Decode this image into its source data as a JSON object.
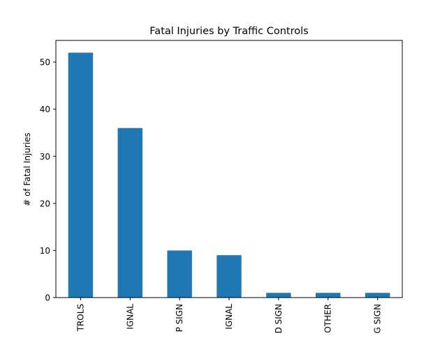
{
  "chart_data": {
    "type": "bar",
    "title": "Fatal Injuries by Traffic Controls",
    "xlabel": "",
    "ylabel": "# of Fatal Injuries",
    "categories": [
      "NO CONTROLS",
      "TRAFFIC SIGNAL",
      "STOP SIGN",
      "FLASHING SIGNAL",
      "YIELD SIGN",
      "OTHER",
      "PEDESTRIAN CROSSING SIGN"
    ],
    "category_labels_visible": [
      "TROLS",
      "IGNAL",
      "P SIGN",
      "IGNAL",
      "D SIGN",
      "OTHER",
      "G SIGN"
    ],
    "values": [
      52,
      36,
      10,
      9,
      1,
      1,
      1
    ],
    "ylim": [
      0,
      54.6
    ],
    "yticks": [
      "0",
      "10",
      "20",
      "30",
      "40",
      "50"
    ],
    "bar_color": "#1f77b4",
    "grid": false,
    "legend": "none"
  }
}
